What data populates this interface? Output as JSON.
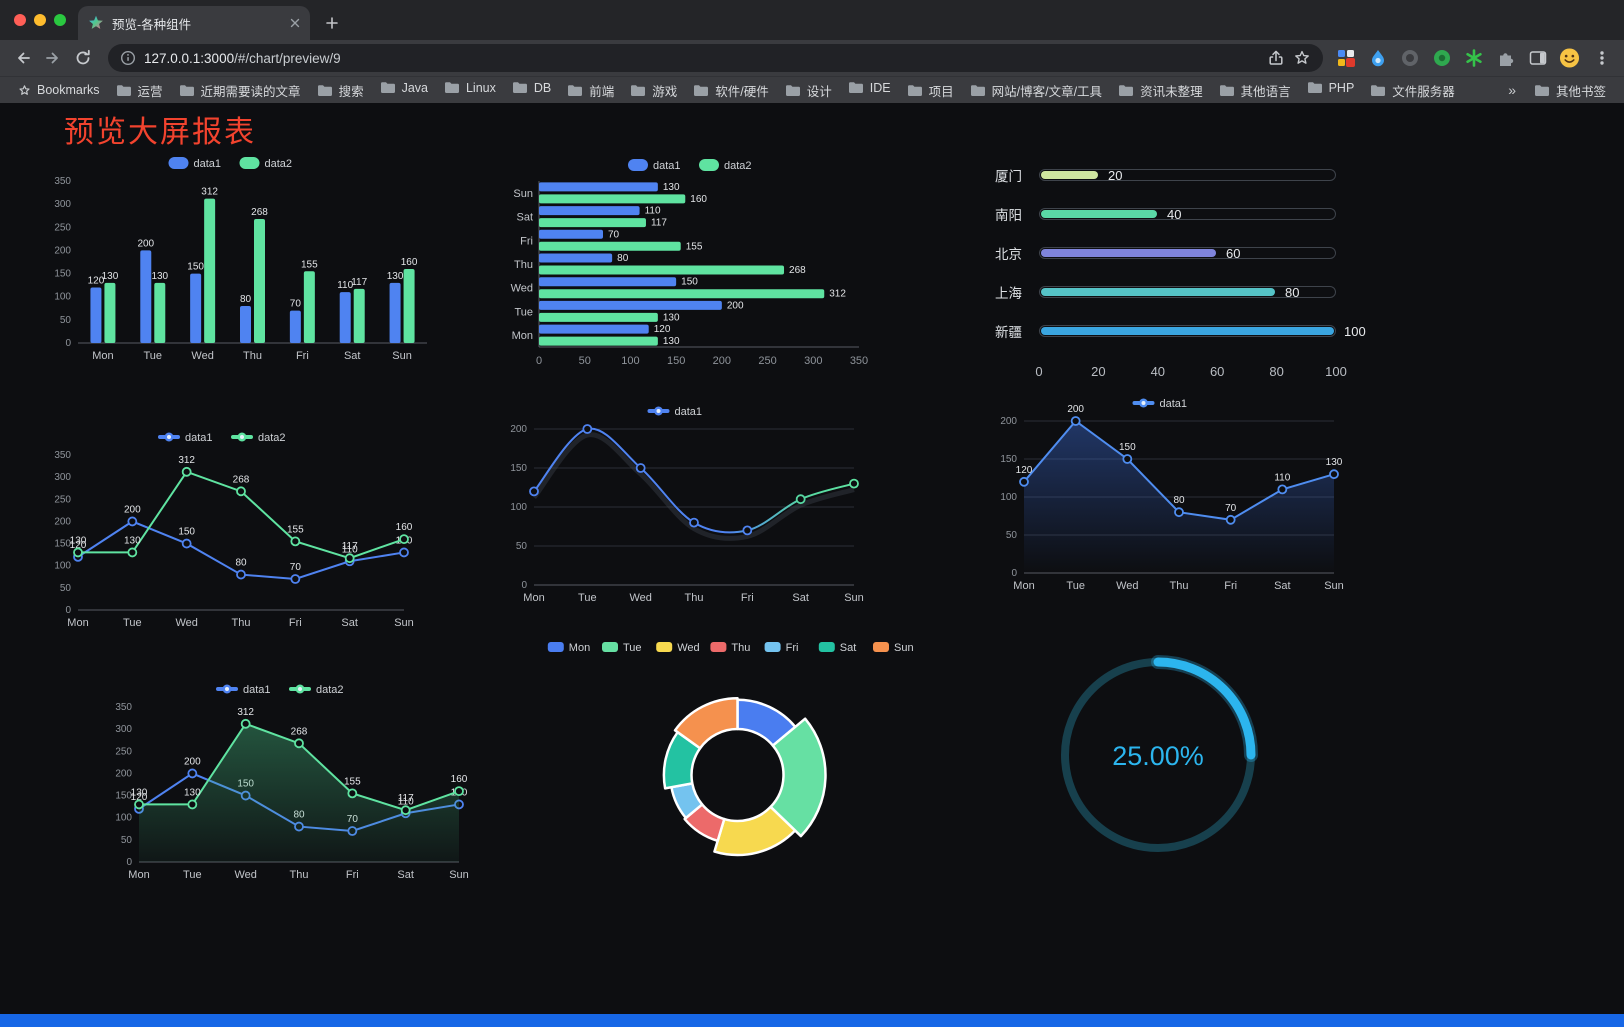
{
  "browser": {
    "tab_title": "预览-各种组件",
    "url_host": "127.0.0.1:3000",
    "url_path": "/#/chart/preview/9",
    "bookmarks_bar": {
      "star_label": "Bookmarks",
      "folders": [
        "运营",
        "近期需要读的文章",
        "搜索",
        "Java",
        "Linux",
        "DB",
        "前端",
        "游戏",
        "软件/硬件",
        "设计",
        "IDE",
        "项目",
        "网站/博客/文章/工具",
        "资讯未整理",
        "其他语言",
        "PHP",
        "文件服务器"
      ],
      "overflow": "»",
      "other": "其他书签"
    }
  },
  "page": {
    "title": "预览大屏报表",
    "title_color": "#f2432e",
    "background": "#0d0e11",
    "footer_color": "#1767e6"
  },
  "chart_data": [
    {
      "id": "grouped-bar",
      "type": "bar",
      "legend": true,
      "categories": [
        "Mon",
        "Tue",
        "Wed",
        "Thu",
        "Fri",
        "Sat",
        "Sun"
      ],
      "ylim": [
        0,
        350
      ],
      "ystep": 50,
      "series": [
        {
          "name": "data1",
          "color": "#4f83f1",
          "values": [
            120,
            200,
            150,
            80,
            70,
            110,
            130
          ]
        },
        {
          "name": "data2",
          "color": "#5fe3a1",
          "values": [
            130,
            130,
            312,
            268,
            155,
            117,
            160
          ]
        }
      ]
    },
    {
      "id": "horizontal-bar",
      "type": "bar-horizontal",
      "legend": true,
      "categories": [
        "Mon",
        "Tue",
        "Wed",
        "Thu",
        "Fri",
        "Sat",
        "Sun"
      ],
      "xlim": [
        0,
        350
      ],
      "xstep": 50,
      "series": [
        {
          "name": "data1",
          "color": "#4f83f1",
          "values": [
            120,
            200,
            150,
            80,
            70,
            110,
            130
          ]
        },
        {
          "name": "data2",
          "color": "#5fe3a1",
          "values": [
            130,
            130,
            312,
            268,
            155,
            117,
            160
          ]
        }
      ]
    },
    {
      "id": "progress-bars",
      "type": "progress",
      "max": 100,
      "axis": [
        0,
        20,
        40,
        60,
        80,
        100
      ],
      "items": [
        {
          "label": "厦门",
          "value": 20,
          "color": "#cfe6a0"
        },
        {
          "label": "南阳",
          "value": 40,
          "color": "#5ad8a6"
        },
        {
          "label": "北京",
          "value": 60,
          "color": "#7f84dc"
        },
        {
          "label": "上海",
          "value": 80,
          "color": "#55c3c7"
        },
        {
          "label": "新疆",
          "value": 100,
          "color": "#3aa5e0"
        }
      ]
    },
    {
      "id": "line-dual",
      "type": "line",
      "legend": true,
      "grid": false,
      "categories": [
        "Mon",
        "Tue",
        "Wed",
        "Thu",
        "Fri",
        "Sat",
        "Sun"
      ],
      "ylim": [
        0,
        350
      ],
      "ystep": 50,
      "series": [
        {
          "name": "data1",
          "color": "#4f83f1",
          "values": [
            120,
            200,
            150,
            80,
            70,
            110,
            130
          ],
          "labels": true
        },
        {
          "name": "data2",
          "color": "#5fe3a1",
          "values": [
            130,
            130,
            312,
            268,
            155,
            117,
            160
          ],
          "labels": true
        }
      ]
    },
    {
      "id": "line-gradient",
      "type": "line",
      "legend": true,
      "grid": true,
      "categories": [
        "Mon",
        "Tue",
        "Wed",
        "Thu",
        "Fri",
        "Sat",
        "Sun"
      ],
      "ylim": [
        0,
        200
      ],
      "ystep": 50,
      "series": [
        {
          "name": "data1",
          "color": "#4f83f1",
          "values": [
            120,
            200,
            150,
            80,
            70,
            110,
            130
          ],
          "smooth": true,
          "shadow": true,
          "gradient": [
            [
              0,
              "#4f83f1"
            ],
            [
              0.6,
              "#4f83f1"
            ],
            [
              0.85,
              "#57d8a2"
            ],
            [
              1,
              "#5fe3a1"
            ]
          ],
          "marker_colors": [
            "#4f83f1",
            "#4f83f1",
            "#4f83f1",
            "#4f83f1",
            "#4f83f1",
            "#57d8a2",
            "#5fe3a1"
          ]
        }
      ]
    },
    {
      "id": "area-line",
      "type": "line",
      "legend": true,
      "grid": true,
      "categories": [
        "Mon",
        "Tue",
        "Wed",
        "Thu",
        "Fri",
        "Sat",
        "Sun"
      ],
      "ylim": [
        0,
        200
      ],
      "ystep": 50,
      "series": [
        {
          "name": "data1",
          "color": "#4f8df0",
          "values": [
            120,
            200,
            150,
            80,
            70,
            110,
            130
          ],
          "labels": true,
          "area": true,
          "area_from": "rgba(60,110,220,0.42)",
          "area_to": "rgba(60,110,220,0)"
        }
      ]
    },
    {
      "id": "line-area-dual",
      "type": "line",
      "legend": true,
      "grid": false,
      "categories": [
        "Mon",
        "Tue",
        "Wed",
        "Thu",
        "Fri",
        "Sat",
        "Sun"
      ],
      "ylim": [
        0,
        350
      ],
      "ystep": 50,
      "series": [
        {
          "name": "data1",
          "color": "#4f83f1",
          "values": [
            120,
            200,
            150,
            80,
            70,
            110,
            130
          ],
          "labels": true
        },
        {
          "name": "data2",
          "color": "#5fe3a1",
          "values": [
            130,
            130,
            312,
            268,
            155,
            117,
            160
          ],
          "labels": true,
          "area": true,
          "area_from": "rgba(70,190,130,0.40)",
          "area_to": "rgba(70,190,130,0.05)"
        }
      ]
    },
    {
      "id": "rose-pie",
      "type": "pie",
      "categories": [
        "Mon",
        "Tue",
        "Wed",
        "Thu",
        "Fri",
        "Sat",
        "Sun"
      ],
      "values": [
        120,
        200,
        150,
        80,
        70,
        110,
        130
      ],
      "colors": [
        "#4a7df0",
        "#66e0a3",
        "#f7d94f",
        "#ec6a6a",
        "#74c3ef",
        "#23c2a2",
        "#f5914e"
      ]
    },
    {
      "id": "gauge",
      "type": "gauge",
      "value": 25,
      "display": "25.00%",
      "color": "#2cb5ee",
      "track_color": "#17404d"
    }
  ]
}
